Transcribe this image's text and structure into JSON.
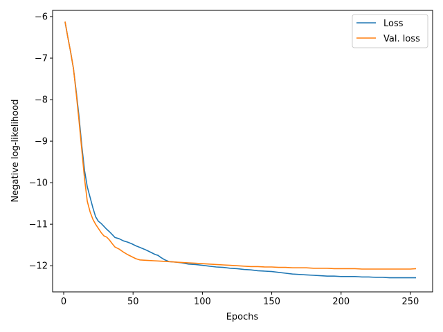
{
  "chart_data": {
    "type": "line",
    "xlabel": "Epochs",
    "ylabel": "Negative log-likelihood",
    "xlim": [
      -8,
      266
    ],
    "ylim": [
      -12.63,
      -5.85
    ],
    "xticks": [
      0,
      50,
      100,
      150,
      200,
      250
    ],
    "yticks": [
      -6,
      -7,
      -8,
      -9,
      -10,
      -11,
      -12
    ],
    "ytick_labels": [
      "−6",
      "−7",
      "−8",
      "−9",
      "−10",
      "−11",
      "−12"
    ],
    "grid": false,
    "legend": {
      "placement": "top-right"
    },
    "series": [
      {
        "name": "Loss",
        "color": "#1f77b4",
        "points": [
          [
            1,
            -6.13
          ],
          [
            3,
            -6.5
          ],
          [
            5,
            -6.85
          ],
          [
            7,
            -7.25
          ],
          [
            9,
            -7.8
          ],
          [
            11,
            -8.4
          ],
          [
            13,
            -9.1
          ],
          [
            15,
            -9.7
          ],
          [
            17,
            -10.1
          ],
          [
            19,
            -10.35
          ],
          [
            21,
            -10.6
          ],
          [
            23,
            -10.82
          ],
          [
            25,
            -10.93
          ],
          [
            27,
            -10.98
          ],
          [
            29,
            -11.05
          ],
          [
            31,
            -11.12
          ],
          [
            33,
            -11.18
          ],
          [
            35,
            -11.25
          ],
          [
            37,
            -11.32
          ],
          [
            40,
            -11.35
          ],
          [
            43,
            -11.4
          ],
          [
            46,
            -11.43
          ],
          [
            49,
            -11.47
          ],
          [
            52,
            -11.52
          ],
          [
            55,
            -11.56
          ],
          [
            58,
            -11.6
          ],
          [
            60,
            -11.63
          ],
          [
            63,
            -11.68
          ],
          [
            66,
            -11.73
          ],
          [
            68,
            -11.75
          ],
          [
            70,
            -11.8
          ],
          [
            73,
            -11.86
          ],
          [
            76,
            -11.9
          ],
          [
            80,
            -11.91
          ],
          [
            85,
            -11.93
          ],
          [
            90,
            -11.96
          ],
          [
            95,
            -11.97
          ],
          [
            100,
            -11.99
          ],
          [
            105,
            -12.01
          ],
          [
            110,
            -12.03
          ],
          [
            115,
            -12.04
          ],
          [
            120,
            -12.06
          ],
          [
            125,
            -12.07
          ],
          [
            130,
            -12.09
          ],
          [
            135,
            -12.1
          ],
          [
            140,
            -12.12
          ],
          [
            145,
            -12.13
          ],
          [
            150,
            -12.14
          ],
          [
            155,
            -12.16
          ],
          [
            160,
            -12.18
          ],
          [
            165,
            -12.2
          ],
          [
            170,
            -12.21
          ],
          [
            175,
            -12.22
          ],
          [
            180,
            -12.23
          ],
          [
            185,
            -12.24
          ],
          [
            190,
            -12.25
          ],
          [
            195,
            -12.25
          ],
          [
            200,
            -12.26
          ],
          [
            205,
            -12.26
          ],
          [
            210,
            -12.26
          ],
          [
            215,
            -12.27
          ],
          [
            220,
            -12.27
          ],
          [
            225,
            -12.28
          ],
          [
            230,
            -12.28
          ],
          [
            235,
            -12.29
          ],
          [
            240,
            -12.29
          ],
          [
            245,
            -12.29
          ],
          [
            250,
            -12.29
          ],
          [
            254,
            -12.29
          ]
        ]
      },
      {
        "name": "Val. loss",
        "color": "#ff7f0e",
        "points": [
          [
            1,
            -6.12
          ],
          [
            3,
            -6.5
          ],
          [
            5,
            -6.85
          ],
          [
            7,
            -7.25
          ],
          [
            9,
            -7.85
          ],
          [
            11,
            -8.5
          ],
          [
            13,
            -9.2
          ],
          [
            15,
            -9.9
          ],
          [
            17,
            -10.45
          ],
          [
            19,
            -10.7
          ],
          [
            21,
            -10.88
          ],
          [
            23,
            -11.0
          ],
          [
            25,
            -11.1
          ],
          [
            27,
            -11.2
          ],
          [
            29,
            -11.28
          ],
          [
            31,
            -11.31
          ],
          [
            33,
            -11.38
          ],
          [
            35,
            -11.47
          ],
          [
            37,
            -11.55
          ],
          [
            40,
            -11.6
          ],
          [
            43,
            -11.67
          ],
          [
            46,
            -11.73
          ],
          [
            49,
            -11.78
          ],
          [
            52,
            -11.83
          ],
          [
            55,
            -11.86
          ],
          [
            60,
            -11.87
          ],
          [
            65,
            -11.88
          ],
          [
            70,
            -11.89
          ],
          [
            75,
            -11.9
          ],
          [
            80,
            -11.91
          ],
          [
            85,
            -11.92
          ],
          [
            90,
            -11.93
          ],
          [
            95,
            -11.94
          ],
          [
            100,
            -11.95
          ],
          [
            105,
            -11.96
          ],
          [
            110,
            -11.97
          ],
          [
            115,
            -11.98
          ],
          [
            120,
            -11.99
          ],
          [
            125,
            -12.0
          ],
          [
            130,
            -12.01
          ],
          [
            135,
            -12.02
          ],
          [
            140,
            -12.02
          ],
          [
            145,
            -12.03
          ],
          [
            150,
            -12.03
          ],
          [
            155,
            -12.04
          ],
          [
            160,
            -12.04
          ],
          [
            165,
            -12.05
          ],
          [
            170,
            -12.05
          ],
          [
            175,
            -12.05
          ],
          [
            180,
            -12.06
          ],
          [
            185,
            -12.06
          ],
          [
            190,
            -12.06
          ],
          [
            195,
            -12.07
          ],
          [
            200,
            -12.07
          ],
          [
            205,
            -12.07
          ],
          [
            210,
            -12.07
          ],
          [
            215,
            -12.08
          ],
          [
            220,
            -12.08
          ],
          [
            225,
            -12.08
          ],
          [
            230,
            -12.08
          ],
          [
            235,
            -12.08
          ],
          [
            240,
            -12.08
          ],
          [
            245,
            -12.08
          ],
          [
            250,
            -12.08
          ],
          [
            254,
            -12.07
          ]
        ]
      }
    ]
  }
}
